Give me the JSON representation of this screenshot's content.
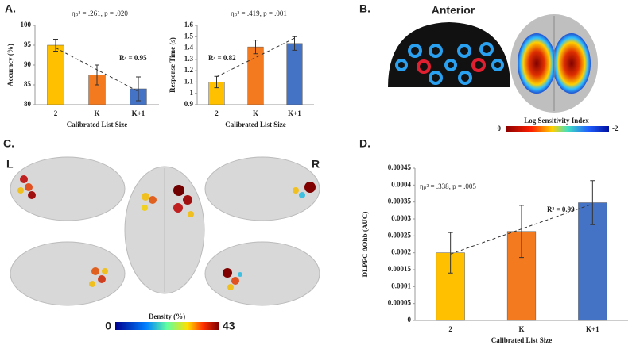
{
  "panels": {
    "a": "A.",
    "b": "B.",
    "c": "C.",
    "d": "D."
  },
  "brain": {
    "anterior": "Anterior",
    "sensitivity_title": "Log Sensitivity Index",
    "sensitivity_min": 0,
    "sensitivity_max": -2,
    "left": "L",
    "right": "R",
    "density_title": "Density (%)",
    "density_min": 0,
    "density_max": 43
  },
  "chart_data": [
    {
      "type": "bar",
      "annotation": "ηₚ² = .261, p = .020",
      "r2": "R² = 0.95",
      "xlabel": "Calibrated List Size",
      "ylabel": "Accuracy (%)",
      "categories": [
        "2",
        "K",
        "K+1"
      ],
      "values": [
        95,
        87.5,
        84
      ],
      "errors": [
        1.5,
        2.5,
        3
      ],
      "colors": [
        "#ffc000",
        "#f47a1f",
        "#4472c4"
      ],
      "ylim": [
        80,
        100
      ],
      "yticks": [
        80,
        85,
        90,
        95,
        100
      ]
    },
    {
      "type": "bar",
      "annotation": "ηₚ² = .419, p = .001",
      "r2": "R² = 0.82",
      "xlabel": "Calibrated List Size",
      "ylabel": "Response Time (s)",
      "categories": [
        "2",
        "K",
        "K+1"
      ],
      "values": [
        1.1,
        1.41,
        1.44
      ],
      "errors": [
        0.05,
        0.06,
        0.06
      ],
      "colors": [
        "#ffc000",
        "#f47a1f",
        "#4472c4"
      ],
      "ylim": [
        0.9,
        1.6
      ],
      "yticks": [
        0.9,
        1,
        1.1,
        1.2,
        1.3,
        1.4,
        1.5,
        1.6
      ]
    },
    {
      "type": "bar",
      "annotation": "ηₚ² = .338, p = .005",
      "r2": "R² = 0.99",
      "xlabel": "Calibrated List Size",
      "ylabel": "DLPFC ΔOhb (AUC)",
      "categories": [
        "2",
        "K",
        "K+1"
      ],
      "values": [
        0.0002,
        0.000263,
        0.000348
      ],
      "errors": [
        6e-05,
        7.7e-05,
        6.5e-05
      ],
      "colors": [
        "#ffc000",
        "#f47a1f",
        "#4472c4"
      ],
      "ylim": [
        0,
        0.00045
      ],
      "yticks": [
        0,
        5e-05,
        0.0001,
        0.00015,
        0.0002,
        0.00025,
        0.0003,
        0.00035,
        0.0004,
        0.00045
      ]
    }
  ]
}
